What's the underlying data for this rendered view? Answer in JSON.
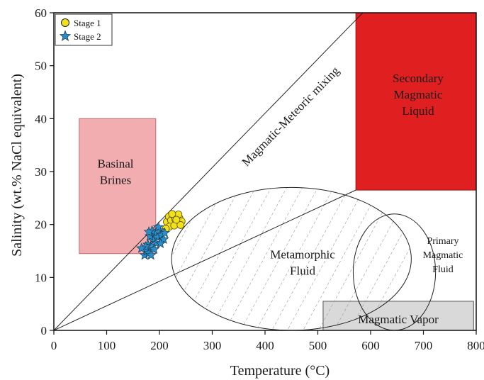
{
  "chart_data": {
    "type": "scatter",
    "xlabel": "Temperature (°C)",
    "ylabel": "Salinity (wt.% NaCl equivalent)",
    "xlim": [
      0,
      800
    ],
    "ylim": [
      0,
      60
    ],
    "xticks": [
      "0",
      "100",
      "200",
      "300",
      "400",
      "500",
      "600",
      "700",
      "800"
    ],
    "yticks": [
      "0",
      "10",
      "20",
      "30",
      "40",
      "50",
      "60"
    ],
    "grid": false,
    "legend": "top-left",
    "series": [
      {
        "name": "Stage 1",
        "marker": "circle",
        "color": "#f2e01c",
        "points": [
          [
            214,
            20.5
          ],
          [
            218,
            21.5
          ],
          [
            222,
            20.8
          ],
          [
            226,
            21.8
          ],
          [
            230,
            21.0
          ],
          [
            234,
            20.2
          ],
          [
            238,
            21.2
          ],
          [
            242,
            20.6
          ],
          [
            219,
            19.6
          ],
          [
            228,
            19.8
          ],
          [
            236,
            21.9
          ],
          [
            224,
            22.0
          ],
          [
            240,
            19.9
          ],
          [
            212,
            19.2
          ],
          [
            232,
            20.9
          ]
        ]
      },
      {
        "name": "Stage 2",
        "marker": "star",
        "color": "#2a8fc9",
        "points": [
          [
            172,
            14.2
          ],
          [
            176,
            15.0
          ],
          [
            180,
            14.6
          ],
          [
            178,
            16.2
          ],
          [
            184,
            16.0
          ],
          [
            188,
            17.0
          ],
          [
            182,
            17.8
          ],
          [
            192,
            18.2
          ],
          [
            196,
            17.6
          ],
          [
            186,
            18.8
          ],
          [
            200,
            18.9
          ],
          [
            204,
            18.0
          ],
          [
            194,
            16.5
          ],
          [
            190,
            15.3
          ],
          [
            198,
            19.5
          ],
          [
            208,
            17.2
          ],
          [
            180,
            18.6
          ],
          [
            174,
            15.8
          ],
          [
            202,
            16.4
          ],
          [
            210,
            18.4
          ],
          [
            166,
            15.5
          ],
          [
            184,
            14.2
          ]
        ]
      }
    ],
    "regions": [
      {
        "name": "basinal-brines",
        "label_lines": [
          "Basinal",
          "Brines"
        ],
        "type": "rect",
        "x": [
          48,
          193
        ],
        "y": [
          14.5,
          40
        ],
        "fill": "#f2adb1",
        "stroke": "#c46a72"
      },
      {
        "name": "secondary-magmatic-liquid",
        "label_lines": [
          "Secondary",
          "Magmatic",
          "Liquid"
        ],
        "type": "rect",
        "x": [
          572,
          800
        ],
        "y": [
          26.5,
          61
        ],
        "fill": "#e02020",
        "stroke": "#a01010"
      },
      {
        "name": "magmatic-vapor",
        "label_lines": [
          "Magmatic Vapor"
        ],
        "type": "rect",
        "x": [
          510,
          795
        ],
        "y": [
          0,
          5.5
        ],
        "fill": "#d9d9d9",
        "stroke": "#555555"
      },
      {
        "name": "metamorphic-fluid",
        "label_lines": [
          "Metamorphic",
          "Fluid"
        ],
        "type": "ellipse",
        "cx": 450,
        "cy": 13.5,
        "rx": 227,
        "ry": 13.5,
        "hatched": true
      },
      {
        "name": "primary-magmatic-fluid",
        "label_lines": [
          "Primary",
          "Magmatic",
          "Fluid"
        ],
        "type": "ellipse",
        "cx": 645,
        "cy": 11,
        "rx": 78,
        "ry": 11
      }
    ],
    "annotations": [
      {
        "text": "Magmatic-Meteoric mixing",
        "line_from": [
          0,
          0
        ],
        "line_to": [
          595,
          61
        ]
      }
    ]
  }
}
